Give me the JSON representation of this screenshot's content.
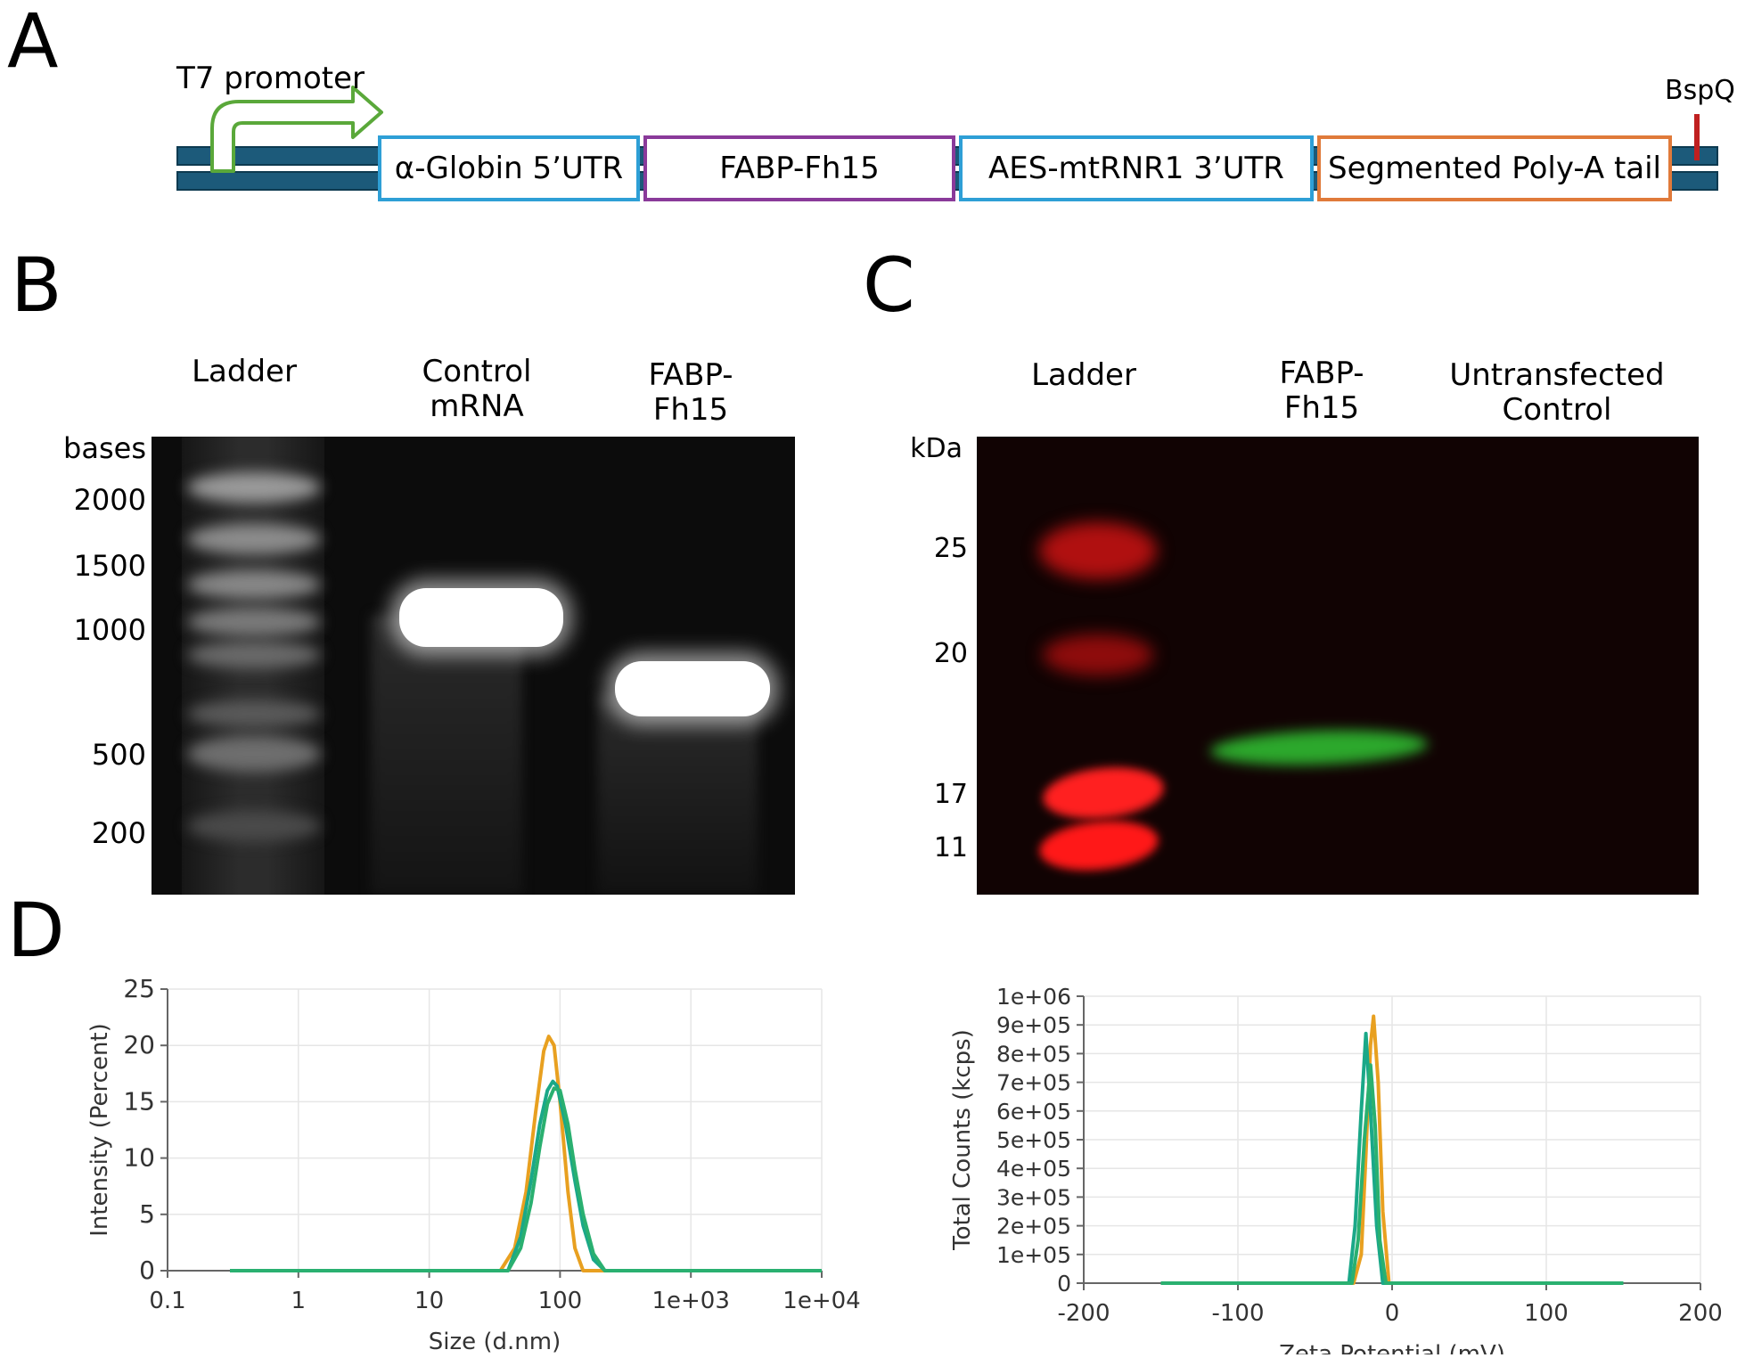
{
  "panels": {
    "a": "A",
    "b": "B",
    "c": "C",
    "d": "D"
  },
  "construct": {
    "promoter": "T7 promoter",
    "site": "BspQI",
    "segments": [
      {
        "label": "α-Globin 5’UTR",
        "color": "#2e9fd6"
      },
      {
        "label": "FABP-Fh15",
        "color": "#8a3a9a"
      },
      {
        "label": "AES-mtRNR1 3’UTR",
        "color": "#2e9fd6"
      },
      {
        "label": "Segmented Poly-A tail",
        "color": "#e07a3a"
      }
    ],
    "backbone_color": "#1c5a7a",
    "promoter_color": "#5aa83a",
    "site_color": "#c02020"
  },
  "gel_b": {
    "lanes": [
      "Ladder",
      "Control\nmRNA",
      "FABP-\nFh15"
    ],
    "unit": "bases",
    "markers": [
      "2000",
      "1500",
      "1000",
      "500",
      "200"
    ]
  },
  "gel_c": {
    "lanes": [
      "Ladder",
      "FABP-\nFh15",
      "Untransfected\nControl"
    ],
    "unit": "kDa",
    "markers": [
      "25",
      "20",
      "17",
      "11"
    ]
  },
  "chart_data": [
    {
      "type": "line",
      "xscale": "log",
      "xlim": [
        0.1,
        10000
      ],
      "ylim": [
        0,
        25
      ],
      "xlabel": "Size (d.nm)",
      "ylabel": "Intensity (Percent)",
      "xticks": [
        "0.1",
        "1",
        "10",
        "100",
        "1e+03",
        "1e+04"
      ],
      "yticks": [
        "0",
        "5",
        "10",
        "15",
        "20",
        "25"
      ],
      "grid": true,
      "series": [
        {
          "color": "#e8a020",
          "x": [
            0.3,
            35,
            45,
            55,
            65,
            75,
            82,
            90,
            100,
            115,
            130,
            150,
            10000
          ],
          "y": [
            0,
            0,
            2,
            7,
            14,
            19.5,
            20.8,
            20,
            15,
            7,
            2,
            0,
            0
          ]
        },
        {
          "color": "#1aa888",
          "x": [
            0.3,
            40,
            50,
            60,
            70,
            80,
            88,
            95,
            110,
            130,
            150,
            180,
            220,
            10000
          ],
          "y": [
            0,
            0,
            3,
            8,
            13,
            16,
            16.8,
            16.4,
            13,
            8,
            4,
            1,
            0,
            0
          ]
        },
        {
          "color": "#2ab070",
          "x": [
            0.3,
            40,
            50,
            60,
            70,
            80,
            90,
            100,
            115,
            130,
            150,
            180,
            220,
            10000
          ],
          "y": [
            0,
            0,
            2,
            6,
            11,
            14.8,
            16.2,
            16,
            13,
            9,
            5,
            1.5,
            0,
            0
          ]
        }
      ]
    },
    {
      "type": "line",
      "xlim": [
        -200,
        200
      ],
      "ylim": [
        0,
        1000000
      ],
      "xlabel": "Zeta Potential (mV)",
      "ylabel": "Total Counts (kcps)",
      "xticks": [
        "-200",
        "-100",
        "0",
        "100",
        "200"
      ],
      "yticks": [
        "0",
        "1e+05",
        "2e+05",
        "3e+05",
        "4e+05",
        "5e+05",
        "6e+05",
        "7e+05",
        "8e+05",
        "9e+05",
        "1e+06"
      ],
      "grid": true,
      "series": [
        {
          "color": "#e8a020",
          "x": [
            -150,
            -25,
            -20,
            -17,
            -14,
            -12,
            -9,
            -6,
            -2,
            150
          ],
          "y": [
            0,
            0,
            100000,
            450000,
            830000,
            930000,
            700000,
            250000,
            0,
            0
          ]
        },
        {
          "color": "#1aa888",
          "x": [
            -150,
            -28,
            -24,
            -20,
            -17,
            -14,
            -10,
            -6,
            150
          ],
          "y": [
            0,
            0,
            200000,
            600000,
            870000,
            600000,
            200000,
            0,
            0
          ]
        },
        {
          "color": "#2ab070",
          "x": [
            -150,
            -26,
            -22,
            -18,
            -14,
            -11,
            -8,
            -4,
            150
          ],
          "y": [
            0,
            0,
            150000,
            500000,
            760000,
            550000,
            150000,
            0,
            0
          ]
        }
      ]
    }
  ]
}
